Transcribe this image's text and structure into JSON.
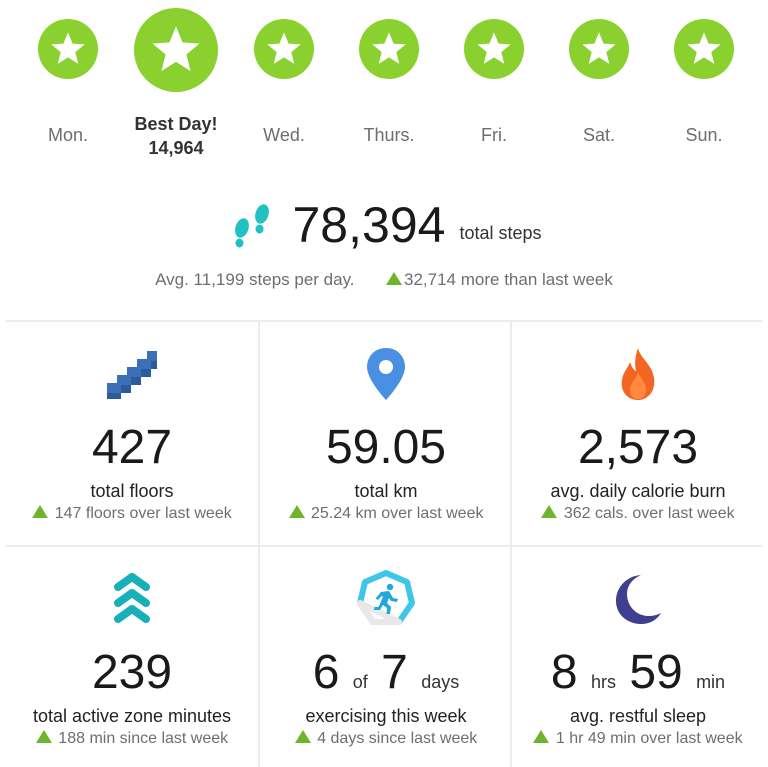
{
  "week": {
    "days": [
      {
        "label": "Mon.",
        "best": false
      },
      {
        "label": "Best Day!",
        "best": true,
        "steps": "14,964"
      },
      {
        "label": "Wed.",
        "best": false
      },
      {
        "label": "Thurs.",
        "best": false
      },
      {
        "label": "Fri.",
        "best": false
      },
      {
        "label": "Sat.",
        "best": false
      },
      {
        "label": "Sun.",
        "best": false
      }
    ],
    "star_color": "#8ad130"
  },
  "steps": {
    "icon": "footprints-icon",
    "total": "78,394",
    "unit": "total steps",
    "avg": "Avg. 11,199 steps per day.",
    "change": "32,714 more than last week"
  },
  "tiles": [
    {
      "icon": "stairs-icon",
      "value": "427",
      "label": "total floors",
      "change": "147 floors over last week"
    },
    {
      "icon": "location-pin-icon",
      "value": "59.05",
      "label": "total km",
      "change": "25.24 km over last week"
    },
    {
      "icon": "flame-icon",
      "value": "2,573",
      "label": "avg. daily calorie burn",
      "change": "362 cals. over last week"
    },
    {
      "icon": "chevrons-up-icon",
      "value": "239",
      "label": "total active zone minutes",
      "change": "188 min since last week"
    },
    {
      "icon": "runner-hexagon-icon",
      "value_parts": [
        "6",
        "of",
        "7",
        "days"
      ],
      "label": "exercising this week",
      "change": "4 days since last week"
    },
    {
      "icon": "moon-icon",
      "value_parts": [
        "8",
        "hrs",
        "59",
        "min"
      ],
      "label": "avg. restful sleep",
      "change": "1 hr 49 min over last week"
    }
  ],
  "colors": {
    "accent_green": "#8ad130",
    "up_arrow": "#6db52a",
    "stairs": "#3b6fb6",
    "pin": "#4a90e2",
    "flame": "#f26522",
    "chevrons": "#18b0b8",
    "moon": "#3f3f8f"
  }
}
